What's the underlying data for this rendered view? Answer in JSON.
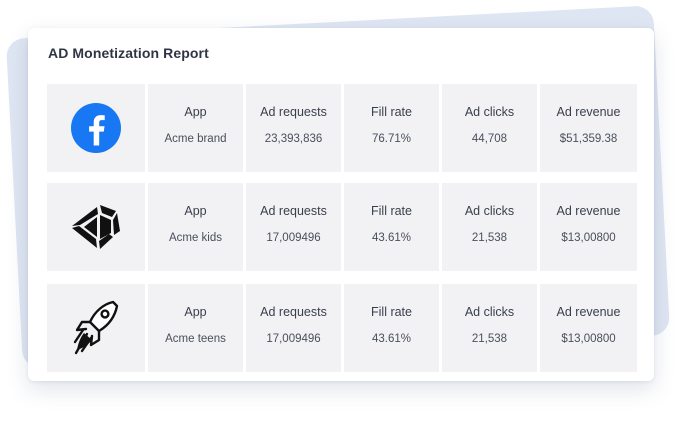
{
  "report": {
    "title": "AD Monetization Report"
  },
  "columns": {
    "app": "App",
    "ad_requests": "Ad requests",
    "fill_rate": "Fill rate",
    "ad_clicks": "Ad clicks",
    "ad_revenue": "Ad revenue"
  },
  "rows": [
    {
      "icon": "facebook-icon",
      "app": "Acme brand",
      "ad_requests": "23,393,836",
      "fill_rate": "76.71%",
      "ad_clicks": "44,708",
      "ad_revenue": "$51,359.38"
    },
    {
      "icon": "unity-icon",
      "app": "Acme kids",
      "ad_requests": "17,009496",
      "fill_rate": "43.61%",
      "ad_clicks": "21,538",
      "ad_revenue": "$13,00800"
    },
    {
      "icon": "rocket-icon",
      "app": "Acme teens",
      "ad_requests": "17,009496",
      "fill_rate": "43.61%",
      "ad_clicks": "21,538",
      "ad_revenue": "$13,00800"
    }
  ],
  "colors": {
    "facebook_blue": "#1877f2",
    "cell_background": "#f2f2f4",
    "back_card": "#dfe6f3"
  }
}
